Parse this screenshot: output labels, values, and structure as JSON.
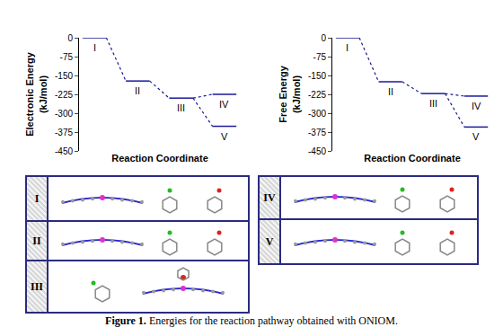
{
  "chart_data": [
    {
      "type": "line",
      "y_label": [
        "Electronic Energy",
        "(kJ/mol)"
      ],
      "x_label": "Reaction Coordinate",
      "categories": [
        "I",
        "II",
        "III",
        "IV",
        "V"
      ],
      "values": [
        0,
        -172,
        -240,
        -225,
        -352
      ],
      "paths": [
        [
          "I",
          "II",
          "III",
          "IV"
        ],
        [
          "I",
          "II",
          "III",
          "V"
        ]
      ],
      "ylim": [
        -450,
        0
      ],
      "yticks": [
        -450,
        -375,
        -300,
        -225,
        -150,
        -75,
        0
      ],
      "color": "#1a1a99",
      "line_style": "dotted",
      "grid": false,
      "tick_labels": "y"
    },
    {
      "type": "line",
      "y_label": [
        "Free Energy",
        "(kJ/mol)"
      ],
      "x_label": "Reaction Coordinate",
      "categories": [
        "I",
        "II",
        "III",
        "IV",
        "V"
      ],
      "values": [
        0,
        -175,
        -222,
        -232,
        -355
      ],
      "paths": [
        [
          "I",
          "II",
          "III",
          "IV"
        ],
        [
          "I",
          "II",
          "III",
          "V"
        ]
      ],
      "ylim": [
        -450,
        0
      ],
      "yticks": [
        -450,
        -375,
        -300,
        -225,
        -150,
        -75,
        0
      ],
      "color": "#1a1a99",
      "line_style": "dotted",
      "grid": false,
      "tick_labels": "y"
    }
  ],
  "panels": [
    {
      "rows": [
        "I",
        "II",
        "III"
      ]
    },
    {
      "rows": [
        "IV",
        "V"
      ]
    }
  ],
  "caption": {
    "label": "Figure 1.",
    "text": "Energies for the reaction pathway obtained with ONIOM."
  }
}
